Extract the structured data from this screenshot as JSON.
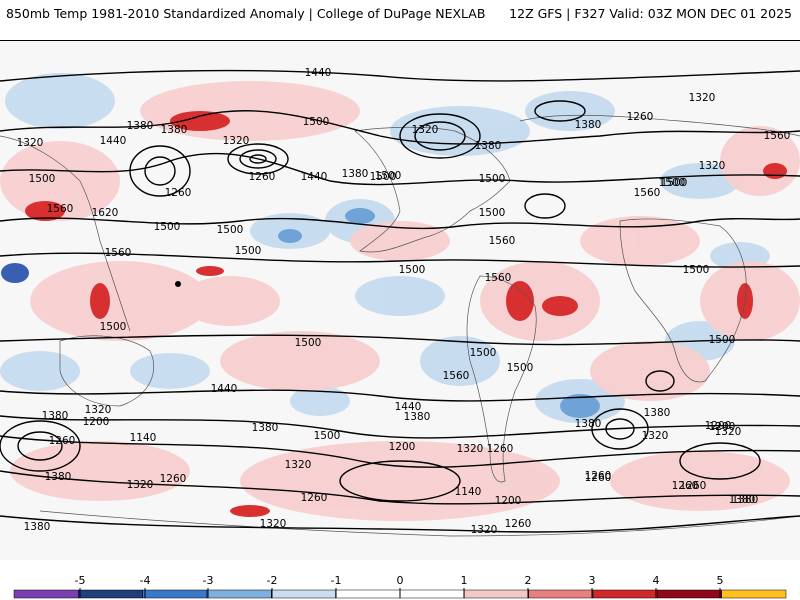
{
  "header": {
    "title": "850mb Temp 1981-2010 Standardized Anomaly | College of DuPage NEXLAB",
    "run_info": "12Z GFS | F327 Valid: 03Z MON DEC 01 2025"
  },
  "contour_labels": [
    "1440",
    "1500",
    "1320",
    "1380",
    "1440",
    "1320",
    "1260",
    "1500",
    "1380",
    "1440",
    "1500",
    "1380",
    "1500",
    "1560",
    "1620",
    "1260",
    "1500",
    "1560",
    "1560",
    "1500",
    "1500",
    "1500",
    "1500",
    "1500",
    "1500",
    "1500",
    "1440",
    "1380",
    "1320",
    "1200",
    "1260",
    "1140",
    "1380",
    "1320",
    "1500",
    "1440",
    "1380",
    "1200",
    "1320",
    "1260",
    "1140",
    "1200",
    "1320",
    "1260",
    "1320",
    "1260",
    "1380",
    "1320",
    "1260",
    "1320",
    "1380",
    "1380",
    "1320",
    "1260",
    "1200",
    "1380",
    "1500",
    "1560",
    "1500",
    "1560",
    "1500",
    "1500",
    "1500",
    "1380",
    "1320",
    "1380",
    "1320",
    "1260",
    "1200",
    "1320",
    "1260",
    "1380",
    "1260",
    "1380",
    "1560",
    "1560",
    "1500",
    "1260"
  ],
  "colorbar": {
    "tick_labels": [
      "-5",
      "-4",
      "-3",
      "-2",
      "-1",
      "0",
      "1",
      "2",
      "3",
      "4",
      "5"
    ],
    "colors": [
      "#7b3fb0",
      "#1f3f7a",
      "#3a78c8",
      "#7eb0e0",
      "#cbdcf0",
      "#ffffff",
      "#ffffff",
      "#f4c8c8",
      "#e88080",
      "#d02828",
      "#900818",
      "#ffc020"
    ]
  },
  "colors": {
    "cold_strong": "#3a78c8",
    "cold_weak": "#c6dbef",
    "warm_weak": "#f8d0d0",
    "warm_strong": "#cc2020",
    "contour": "#000000",
    "border": "#555555"
  }
}
